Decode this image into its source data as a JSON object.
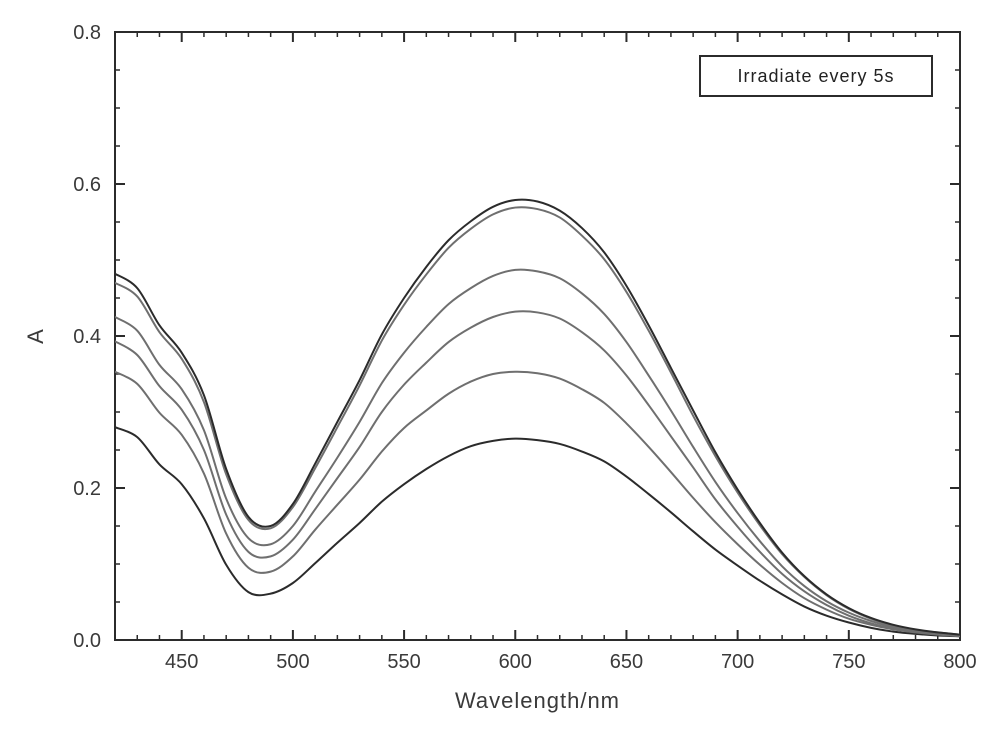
{
  "chart": {
    "type": "line",
    "background_color": "#ffffff",
    "plot_border_color": "#2b2b2b",
    "plot_border_width": 2,
    "xlabel": "Wavelength/nm",
    "ylabel": "A",
    "label_fontsize": 22,
    "label_color": "#3a3a3a",
    "tick_fontsize": 20,
    "tick_color": "#3a3a3a",
    "xlim": [
      420,
      800
    ],
    "ylim": [
      0.0,
      0.8
    ],
    "xticks": [
      450,
      500,
      550,
      600,
      650,
      700,
      750,
      800
    ],
    "yticks": [
      0.0,
      0.2,
      0.4,
      0.6,
      0.8
    ],
    "minor_xtick_step": 10,
    "minor_ytick_step": 0.05,
    "tick_length_major": 10,
    "tick_length_minor": 5,
    "grid": false,
    "legend": {
      "text": "Irradiate every 5s",
      "fontsize": 18,
      "position": "top-right",
      "box_stroke": "#2b2b2b",
      "box_fill": "#ffffff"
    },
    "line_width": 2,
    "x_values": [
      420,
      430,
      440,
      450,
      460,
      470,
      480,
      490,
      500,
      510,
      520,
      530,
      540,
      550,
      560,
      570,
      580,
      590,
      600,
      610,
      620,
      630,
      640,
      650,
      660,
      670,
      680,
      690,
      700,
      710,
      720,
      730,
      740,
      750,
      760,
      770,
      780,
      790,
      800
    ],
    "series": [
      {
        "name": "curve-1",
        "color": "#2b2b2b",
        "y": [
          0.28,
          0.267,
          0.231,
          0.205,
          0.16,
          0.099,
          0.063,
          0.061,
          0.075,
          0.101,
          0.128,
          0.154,
          0.182,
          0.205,
          0.225,
          0.242,
          0.255,
          0.262,
          0.265,
          0.263,
          0.258,
          0.248,
          0.235,
          0.215,
          0.192,
          0.168,
          0.143,
          0.119,
          0.098,
          0.078,
          0.06,
          0.044,
          0.032,
          0.023,
          0.016,
          0.011,
          0.008,
          0.006,
          0.005
        ]
      },
      {
        "name": "curve-2",
        "color": "#6f6f6f",
        "y": [
          0.353,
          0.337,
          0.299,
          0.27,
          0.219,
          0.14,
          0.095,
          0.09,
          0.11,
          0.145,
          0.178,
          0.211,
          0.248,
          0.279,
          0.302,
          0.324,
          0.34,
          0.35,
          0.353,
          0.351,
          0.344,
          0.33,
          0.312,
          0.285,
          0.254,
          0.221,
          0.187,
          0.155,
          0.126,
          0.099,
          0.075,
          0.055,
          0.04,
          0.028,
          0.02,
          0.014,
          0.01,
          0.007,
          0.005
        ]
      },
      {
        "name": "curve-3",
        "color": "#6f6f6f",
        "y": [
          0.393,
          0.375,
          0.334,
          0.303,
          0.25,
          0.165,
          0.116,
          0.11,
          0.132,
          0.172,
          0.213,
          0.254,
          0.3,
          0.336,
          0.365,
          0.392,
          0.411,
          0.425,
          0.432,
          0.431,
          0.423,
          0.405,
          0.381,
          0.348,
          0.309,
          0.268,
          0.227,
          0.185,
          0.149,
          0.116,
          0.087,
          0.064,
          0.046,
          0.032,
          0.022,
          0.015,
          0.011,
          0.008,
          0.006
        ]
      },
      {
        "name": "curve-4",
        "color": "#6f6f6f",
        "y": [
          0.425,
          0.407,
          0.362,
          0.33,
          0.276,
          0.186,
          0.134,
          0.126,
          0.15,
          0.195,
          0.24,
          0.287,
          0.338,
          0.378,
          0.412,
          0.442,
          0.463,
          0.479,
          0.487,
          0.485,
          0.476,
          0.456,
          0.429,
          0.392,
          0.348,
          0.302,
          0.254,
          0.208,
          0.167,
          0.13,
          0.097,
          0.071,
          0.051,
          0.036,
          0.025,
          0.017,
          0.012,
          0.009,
          0.006
        ]
      },
      {
        "name": "curve-5",
        "color": "#6f6f6f",
        "y": [
          0.47,
          0.452,
          0.405,
          0.37,
          0.313,
          0.218,
          0.158,
          0.147,
          0.175,
          0.226,
          0.28,
          0.335,
          0.394,
          0.441,
          0.481,
          0.516,
          0.541,
          0.56,
          0.569,
          0.567,
          0.556,
          0.532,
          0.501,
          0.458,
          0.407,
          0.352,
          0.295,
          0.242,
          0.194,
          0.151,
          0.113,
          0.083,
          0.059,
          0.041,
          0.028,
          0.019,
          0.013,
          0.01,
          0.007
        ]
      },
      {
        "name": "curve-6",
        "color": "#2b2b2b",
        "y": [
          0.482,
          0.463,
          0.414,
          0.378,
          0.322,
          0.225,
          0.162,
          0.15,
          0.179,
          0.232,
          0.287,
          0.342,
          0.402,
          0.45,
          0.491,
          0.526,
          0.551,
          0.57,
          0.579,
          0.577,
          0.565,
          0.542,
          0.51,
          0.466,
          0.414,
          0.358,
          0.302,
          0.247,
          0.198,
          0.154,
          0.115,
          0.084,
          0.06,
          0.042,
          0.029,
          0.02,
          0.014,
          0.01,
          0.007
        ]
      }
    ]
  }
}
